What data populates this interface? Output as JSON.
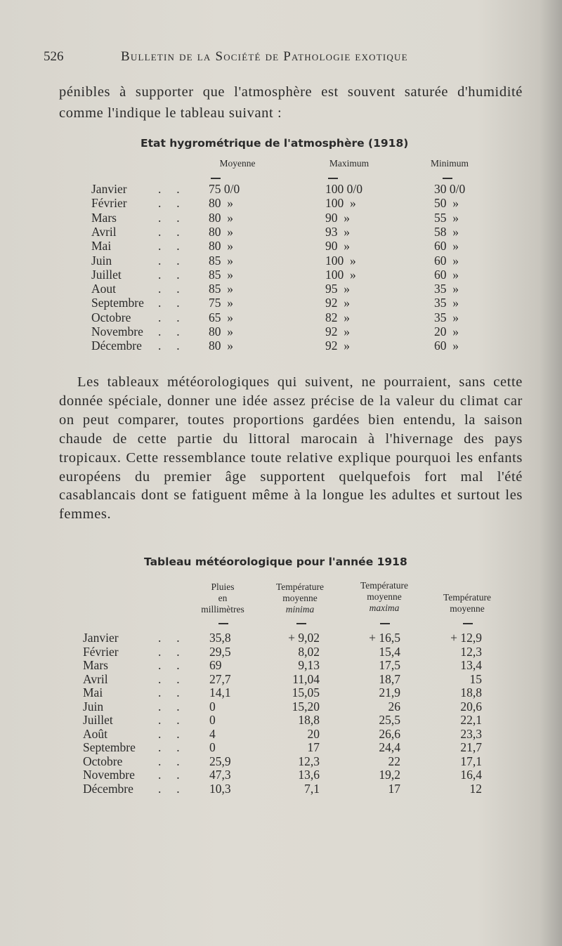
{
  "header": {
    "page_number": "526",
    "running_title": "Bulletin de la Société de Pathologie exotique"
  },
  "paragraph_1": "pénibles à supporter que l'atmosphère est souvent saturée d'humidité comme l'indique le tableau suivant :",
  "table_hygro": {
    "title": "Etat hygrométrique de l'atmosphère (1918)",
    "columns": [
      "Moyenne",
      "Maximum",
      "Minimum"
    ],
    "rows": [
      {
        "month": "Janvier",
        "moyenne": "75 0/0",
        "maximum": "100 0/0",
        "minimum": "30 0/0"
      },
      {
        "month": "Février",
        "moyenne": "80  »",
        "maximum": "100  »",
        "minimum": "50  »"
      },
      {
        "month": "Mars",
        "moyenne": "80  »",
        "maximum": "90  »",
        "minimum": "55  »"
      },
      {
        "month": "Avril",
        "moyenne": "80  »",
        "maximum": "93  »",
        "minimum": "58  »"
      },
      {
        "month": "Mai",
        "moyenne": "80  »",
        "maximum": "90  »",
        "minimum": "60  »"
      },
      {
        "month": "Juin",
        "moyenne": "85  »",
        "maximum": "100  »",
        "minimum": "60  »"
      },
      {
        "month": "Juillet",
        "moyenne": "85  »",
        "maximum": "100  »",
        "minimum": "60  »"
      },
      {
        "month": "Aout",
        "moyenne": "85  »",
        "maximum": "95  »",
        "minimum": "35  »"
      },
      {
        "month": "Septembre",
        "moyenne": "75  »",
        "maximum": "92  »",
        "minimum": "35  »"
      },
      {
        "month": "Octobre",
        "moyenne": "65  »",
        "maximum": "82  »",
        "minimum": "35  »"
      },
      {
        "month": "Novembre",
        "moyenne": "80  »",
        "maximum": "92  »",
        "minimum": "20  »"
      },
      {
        "month": "Décembre",
        "moyenne": "80  »",
        "maximum": "92  »",
        "minimum": "60  »"
      }
    ]
  },
  "paragraph_2": "Les tableaux météorologiques qui suivent, ne pourraient, sans cette donnée spéciale, donner une idée assez précise de la valeur du climat car on peut comparer, toutes proportions gardées bien entendu, la saison chaude de cette partie du littoral marocain à l'hivernage des pays tropicaux. Cette ressemblance toute relative explique pourquoi les enfants européens du premier âge supportent quelquefois fort mal l'été casablancais dont se fatiguent même à la longue les adultes et surtout les femmes.",
  "table_meteo": {
    "title": "Tableau météorologique pour l'année 1918",
    "columns": [
      {
        "line1": "Pluies",
        "line2": "en",
        "line3": "millimètres"
      },
      {
        "line1": "Température",
        "line2": "moyenne",
        "line3": "minima"
      },
      {
        "line1": "Température",
        "line2": "moyenne",
        "line3": "maxima"
      },
      {
        "line1": "Température",
        "line2": "moyenne"
      }
    ],
    "rows": [
      {
        "month": "Janvier",
        "pluies": "35,8",
        "tmin": "+ 9,02",
        "tmax": "+ 16,5",
        "tmoy": "+ 12,9"
      },
      {
        "month": "Février",
        "pluies": "29,5",
        "tmin": "8,02",
        "tmax": "15,4",
        "tmoy": "12,3"
      },
      {
        "month": "Mars",
        "pluies": "69",
        "tmin": "9,13",
        "tmax": "17,5",
        "tmoy": "13,4"
      },
      {
        "month": "Avril",
        "pluies": "27,7",
        "tmin": "11,04",
        "tmax": "18,7",
        "tmoy": "15"
      },
      {
        "month": "Mai",
        "pluies": "14,1",
        "tmin": "15,05",
        "tmax": "21,9",
        "tmoy": "18,8"
      },
      {
        "month": "Juin",
        "pluies": "0",
        "tmin": "15,20",
        "tmax": "26",
        "tmoy": "20,6"
      },
      {
        "month": "Juillet",
        "pluies": "0",
        "tmin": "18,8",
        "tmax": "25,5",
        "tmoy": "22,1"
      },
      {
        "month": "Août",
        "pluies": "4",
        "tmin": "20",
        "tmax": "26,6",
        "tmoy": "23,3"
      },
      {
        "month": "Septembre",
        "pluies": "0",
        "tmin": "17",
        "tmax": "24,4",
        "tmoy": "21,7"
      },
      {
        "month": "Octobre",
        "pluies": "25,9",
        "tmin": "12,3",
        "tmax": "22",
        "tmoy": "17,1"
      },
      {
        "month": "Novembre",
        "pluies": "47,3",
        "tmin": "13,6",
        "tmax": "19,2",
        "tmoy": "16,4"
      },
      {
        "month": "Décembre",
        "pluies": "10,3",
        "tmin": "7,1",
        "tmax": "17",
        "tmoy": "12"
      }
    ]
  }
}
